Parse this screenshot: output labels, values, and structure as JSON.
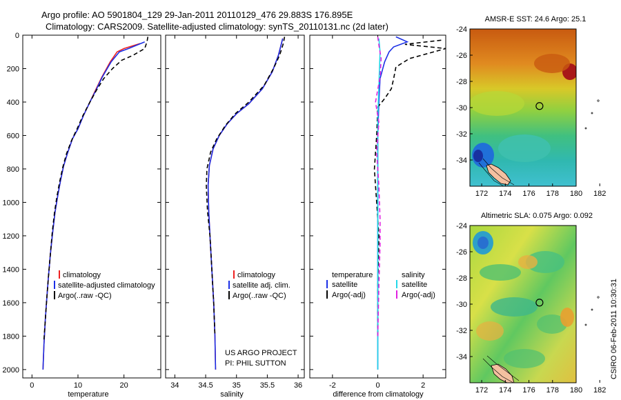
{
  "figure": {
    "title_line1": "Argo profile: AO 5901804_129 29-Jan-2011 20110129_476 29.883S 176.895E",
    "title_line2": "Climatology: CARS2009. Satellite-adjusted climatology: synTS_20110131.nc (2d later)",
    "project_line1": "US ARGO PROJECT",
    "project_line2": "PI: PHIL SUTTON",
    "footer": "CSIRO 06-Feb-2011 10:30:31"
  },
  "colors": {
    "climatology": "#ee2020",
    "satellite": "#1a2ee6",
    "argo": "#000000",
    "satellite_salinity_diff": "#22d8e8",
    "argo_salinity_diff": "#e020e0",
    "coast": "#000000",
    "land": "#f4c0a0"
  },
  "chart_data": [
    {
      "type": "line",
      "xlabel": "temperature",
      "ylim": [
        2050,
        0
      ],
      "xlim": [
        -2,
        28
      ],
      "xticks": [
        0,
        10,
        20
      ],
      "yticks": [
        0,
        200,
        400,
        600,
        800,
        1000,
        1200,
        1400,
        1600,
        1800,
        2000
      ],
      "legend": {
        "position": "lower-right"
      },
      "series": [
        {
          "name": "climatology",
          "style": "solid",
          "color": "#ee2020",
          "points": [
            [
              23.5,
              50
            ],
            [
              20,
              80
            ],
            [
              18.5,
              100
            ],
            [
              17,
              160
            ],
            [
              15.2,
              250
            ],
            [
              13.8,
              330
            ],
            [
              12.6,
              400
            ],
            [
              11.2,
              480
            ],
            [
              10,
              560
            ],
            [
              8.8,
              620
            ],
            [
              7.8,
              700
            ],
            [
              6.9,
              780
            ],
            [
              6.2,
              870
            ],
            [
              5.6,
              960
            ],
            [
              5.0,
              1060
            ],
            [
              4.5,
              1180
            ],
            [
              4.0,
              1310
            ],
            [
              3.6,
              1440
            ],
            [
              3.2,
              1580
            ],
            [
              2.9,
              1700
            ],
            [
              2.6,
              1850
            ],
            [
              2.4,
              2000
            ]
          ]
        },
        {
          "name": "satellite-adjusted climatology",
          "style": "solid",
          "color": "#1a2ee6",
          "points": [
            [
              24.5,
              40
            ],
            [
              21,
              80
            ],
            [
              19,
              100
            ],
            [
              17.2,
              160
            ],
            [
              15.3,
              250
            ],
            [
              13.9,
              330
            ],
            [
              12.6,
              400
            ],
            [
              11.2,
              480
            ],
            [
              10,
              560
            ],
            [
              8.8,
              620
            ],
            [
              7.8,
              700
            ],
            [
              6.9,
              780
            ],
            [
              6.2,
              870
            ],
            [
              5.6,
              960
            ],
            [
              5.0,
              1060
            ],
            [
              4.5,
              1180
            ],
            [
              4.0,
              1310
            ],
            [
              3.6,
              1440
            ],
            [
              3.2,
              1580
            ],
            [
              2.9,
              1700
            ],
            [
              2.6,
              1850
            ],
            [
              2.4,
              2000
            ]
          ]
        },
        {
          "name": "Argo(..raw -QC)",
          "style": "dashed",
          "color": "#000000",
          "points": [
            [
              25.2,
              10
            ],
            [
              25,
              40
            ],
            [
              24.5,
              80
            ],
            [
              22,
              120
            ],
            [
              19.5,
              150
            ],
            [
              17.5,
              200
            ],
            [
              15.6,
              260
            ],
            [
              14,
              330
            ],
            [
              12.6,
              400
            ],
            [
              11.1,
              480
            ],
            [
              9.8,
              560
            ],
            [
              8.6,
              630
            ],
            [
              7.5,
              710
            ],
            [
              6.7,
              790
            ],
            [
              6.0,
              880
            ],
            [
              5.4,
              970
            ],
            [
              4.9,
              1060
            ],
            [
              4.4,
              1180
            ],
            [
              4.0,
              1310
            ],
            [
              3.6,
              1440
            ],
            [
              3.2,
              1580
            ],
            [
              2.9,
              1700
            ],
            [
              2.6,
              1820
            ]
          ]
        }
      ]
    },
    {
      "type": "line",
      "xlabel": "salinity",
      "ylim": [
        2050,
        0
      ],
      "xlim": [
        33.85,
        36.1
      ],
      "xticks": [
        34,
        34.5,
        35,
        35.5,
        36
      ],
      "legend": {
        "position": "lower-right"
      },
      "series": [
        {
          "name": "climatology",
          "style": "solid",
          "color": "#ee2020",
          "points": [
            [
              35.75,
              20
            ],
            [
              35.73,
              50
            ],
            [
              35.68,
              120
            ],
            [
              35.58,
              220
            ],
            [
              35.42,
              320
            ],
            [
              35.2,
              410
            ],
            [
              35,
              470
            ],
            [
              34.85,
              530
            ],
            [
              34.72,
              600
            ],
            [
              34.62,
              680
            ],
            [
              34.56,
              780
            ],
            [
              34.54,
              900
            ],
            [
              34.55,
              1050
            ],
            [
              34.57,
              1200
            ],
            [
              34.6,
              1400
            ],
            [
              34.63,
              1600
            ],
            [
              34.65,
              1800
            ],
            [
              34.66,
              2000
            ]
          ]
        },
        {
          "name": "satellite adj. clim.",
          "style": "solid",
          "color": "#1a2ee6",
          "points": [
            [
              35.75,
              20
            ],
            [
              35.73,
              50
            ],
            [
              35.68,
              120
            ],
            [
              35.58,
              220
            ],
            [
              35.42,
              320
            ],
            [
              35.2,
              410
            ],
            [
              35,
              470
            ],
            [
              34.85,
              530
            ],
            [
              34.72,
              600
            ],
            [
              34.62,
              680
            ],
            [
              34.56,
              780
            ],
            [
              34.54,
              900
            ],
            [
              34.55,
              1050
            ],
            [
              34.57,
              1200
            ],
            [
              34.6,
              1400
            ],
            [
              34.63,
              1600
            ],
            [
              34.65,
              1800
            ],
            [
              34.66,
              2000
            ]
          ]
        },
        {
          "name": "Argo(..raw -QC)",
          "style": "dashed",
          "color": "#000000",
          "points": [
            [
              35.78,
              10
            ],
            [
              35.76,
              50
            ],
            [
              35.7,
              120
            ],
            [
              35.6,
              200
            ],
            [
              35.45,
              300
            ],
            [
              35.2,
              400
            ],
            [
              34.98,
              470
            ],
            [
              34.82,
              540
            ],
            [
              34.68,
              620
            ],
            [
              34.58,
              700
            ],
            [
              34.52,
              800
            ],
            [
              34.51,
              900
            ],
            [
              34.53,
              1050
            ],
            [
              34.57,
              1200
            ],
            [
              34.6,
              1400
            ],
            [
              34.63,
              1600
            ],
            [
              34.65,
              1800
            ]
          ]
        }
      ]
    },
    {
      "type": "line",
      "xlabel": "difference from climatology",
      "ylim": [
        2050,
        0
      ],
      "xlim": [
        -3,
        3
      ],
      "xticks": [
        -2,
        0,
        2
      ],
      "legend": {
        "position": "lower-right",
        "group_titles": [
          "temperature",
          "salinity"
        ]
      },
      "series": [
        {
          "name": "temperature satellite",
          "style": "solid",
          "color": "#1a2ee6",
          "points": [
            [
              0.8,
              10
            ],
            [
              1.3,
              40
            ],
            [
              0.7,
              70
            ],
            [
              0.5,
              100
            ],
            [
              0.3,
              160
            ],
            [
              0.1,
              260
            ],
            [
              0.05,
              400
            ],
            [
              0,
              600
            ],
            [
              0,
              900
            ],
            [
              0,
              1200
            ],
            [
              0,
              1500
            ],
            [
              0,
              2000
            ]
          ]
        },
        {
          "name": "temperature Argo(-adj)",
          "style": "dashed",
          "color": "#000000",
          "points": [
            [
              2.8,
              30
            ],
            [
              1.2,
              55
            ],
            [
              3.0,
              80
            ],
            [
              2.2,
              110
            ],
            [
              1.4,
              140
            ],
            [
              0.8,
              190
            ],
            [
              0.7,
              260
            ],
            [
              0.6,
              320
            ],
            [
              0.3,
              380
            ],
            [
              0,
              430
            ],
            [
              -0.05,
              600
            ],
            [
              -0.15,
              800
            ],
            [
              -0.1,
              900
            ],
            [
              -0.05,
              1000
            ],
            [
              0.05,
              1200
            ],
            [
              0,
              1500
            ],
            [
              0,
              1800
            ]
          ]
        },
        {
          "name": "salinity satellite",
          "style": "solid",
          "color": "#22d8e8",
          "points": [
            [
              0.05,
              20
            ],
            [
              0.1,
              100
            ],
            [
              0.05,
              300
            ],
            [
              0,
              500
            ],
            [
              0,
              800
            ],
            [
              0,
              1200
            ],
            [
              0,
              1600
            ],
            [
              0,
              2000
            ]
          ]
        },
        {
          "name": "salinity Argo(-adj)",
          "style": "dashed",
          "color": "#e020e0",
          "points": [
            [
              0,
              10
            ],
            [
              0.05,
              60
            ],
            [
              0.15,
              140
            ],
            [
              0.1,
              250
            ],
            [
              -0.1,
              400
            ],
            [
              0.05,
              520
            ],
            [
              -0.05,
              700
            ],
            [
              0.05,
              900
            ],
            [
              0.1,
              1100
            ],
            [
              0.1,
              1250
            ],
            [
              0.05,
              1500
            ],
            [
              0,
              1800
            ]
          ]
        }
      ]
    }
  ],
  "maps": [
    {
      "title": "AMSR-E SST: 24.6 Argo: 25.1",
      "xlim": [
        171,
        183
      ],
      "ylim": [
        -36,
        -24
      ],
      "xticks": [
        172,
        174,
        176,
        178,
        180,
        182
      ],
      "yticks": [
        -24,
        -26,
        -28,
        -30,
        -32,
        -34
      ],
      "marker": {
        "lon": 176.895,
        "lat": -29.883
      }
    },
    {
      "title": "Altimetric SLA: 0.075 Argo: 0.092",
      "xlim": [
        171,
        183
      ],
      "ylim": [
        -36,
        -24
      ],
      "xticks": [
        172,
        174,
        176,
        178,
        180,
        182
      ],
      "yticks": [
        -24,
        -26,
        -28,
        -30,
        -32,
        -34
      ],
      "marker": {
        "lon": 176.895,
        "lat": -29.883
      }
    }
  ],
  "legends": {
    "temperature": [
      "climatology",
      "satellite-adjusted climatology",
      "Argo(..raw -QC)"
    ],
    "salinity": [
      "climatology",
      "satellite adj. clim.",
      "Argo(..raw -QC)"
    ],
    "diff_temperature": [
      "temperature",
      "satellite",
      "Argo(-adj)"
    ],
    "diff_salinity": [
      "salinity",
      "satellite",
      "Argo(-adj)"
    ]
  }
}
